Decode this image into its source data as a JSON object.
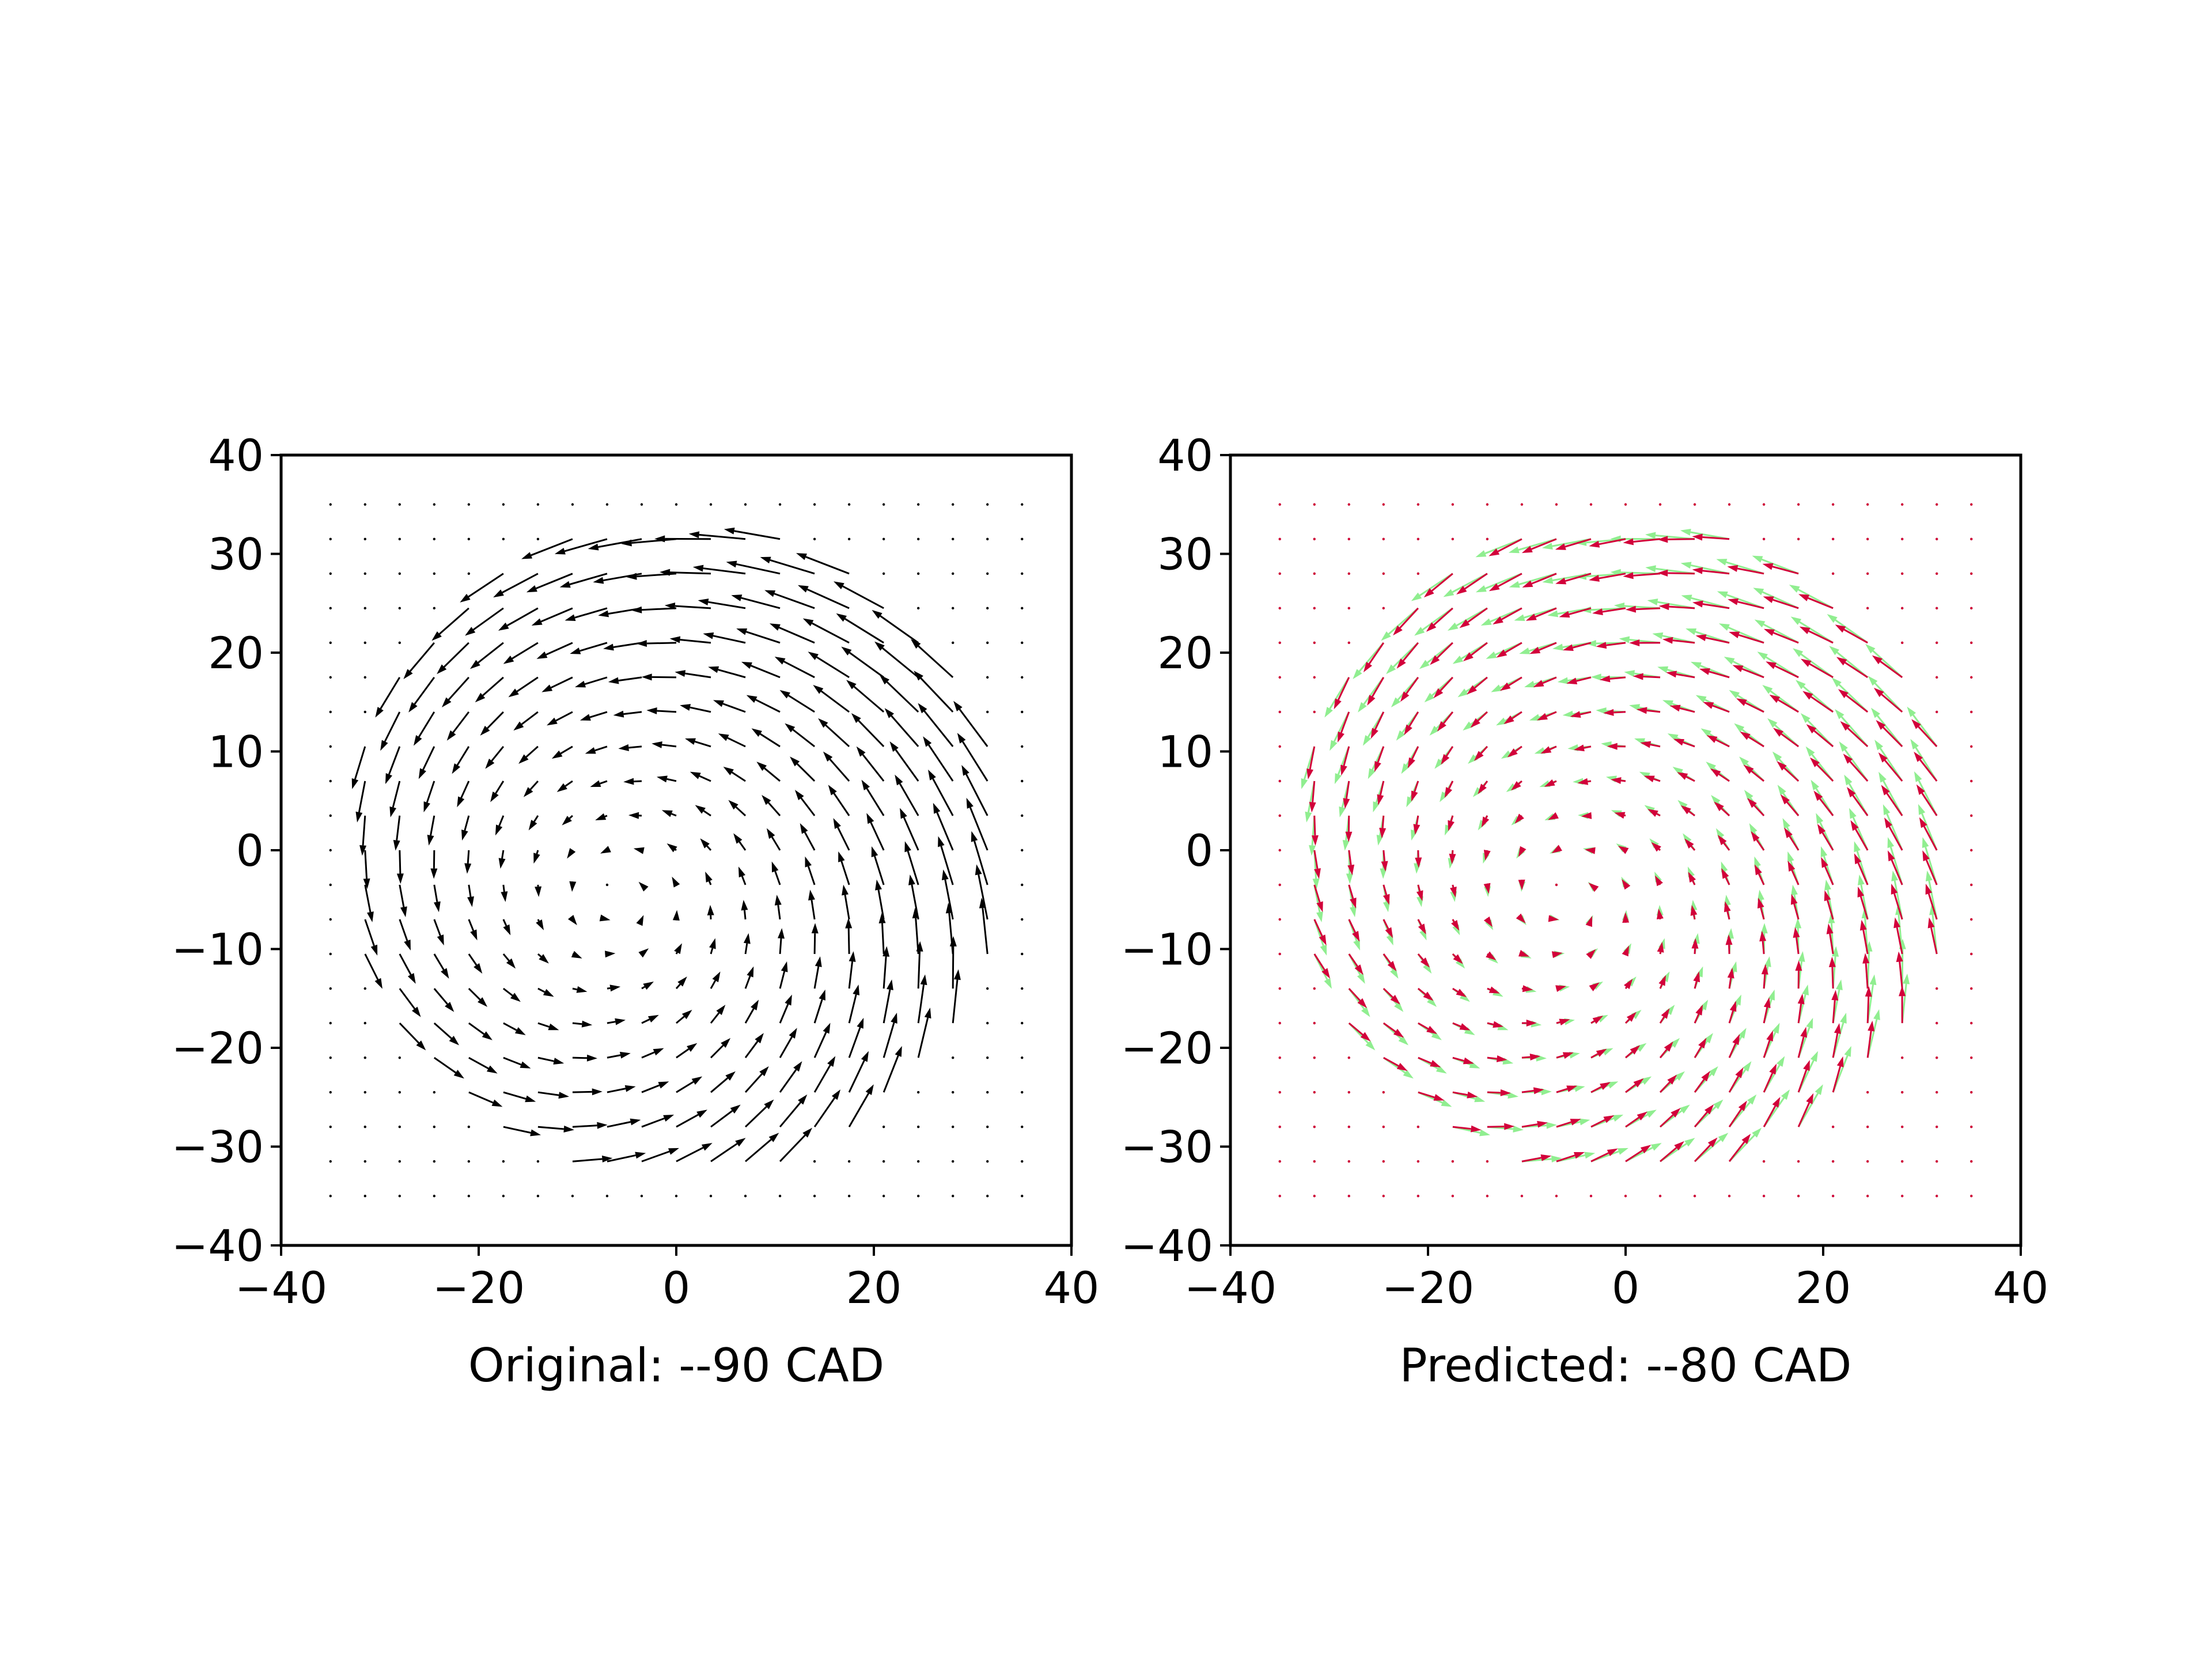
{
  "chart_data": [
    {
      "type": "quiver",
      "xlabel": "Original: --90 CAD",
      "xlim": [
        -40,
        40
      ],
      "ylim": [
        -40,
        40
      ],
      "xticks": [
        -40,
        -20,
        0,
        20,
        40
      ],
      "yticks": [
        -40,
        -30,
        -20,
        -10,
        0,
        10,
        20,
        30,
        40
      ],
      "grid": false,
      "field": {
        "grid_x": [
          -35,
          35,
          3.5
        ],
        "grid_y": [
          -35,
          35,
          3.5
        ],
        "region_radius": 34,
        "center": [
          -6,
          -5
        ],
        "note_free": true,
        "rotation": "counterclockwise",
        "max_magnitude": 16
      },
      "series": [
        {
          "color": "#000000",
          "magnitude_scale": 1.0,
          "angle_offset_deg": 0
        }
      ]
    },
    {
      "type": "quiver",
      "xlabel": "Predicted: --80 CAD",
      "xlim": [
        -40,
        40
      ],
      "ylim": [
        -40,
        40
      ],
      "xticks": [
        -40,
        -20,
        0,
        20,
        40
      ],
      "yticks": [
        -40,
        -30,
        -20,
        -10,
        0,
        10,
        20,
        30,
        40
      ],
      "grid": false,
      "field": {
        "grid_x": [
          -35,
          35,
          3.5
        ],
        "grid_y": [
          -35,
          35,
          3.5
        ],
        "region_radius": 34,
        "center": [
          -6,
          -5
        ],
        "rotation": "counterclockwise",
        "max_magnitude": 14
      },
      "series": [
        {
          "color": "#90ee90",
          "magnitude_scale": 1.0,
          "angle_offset_deg": 0
        },
        {
          "color": "#d2003a",
          "magnitude_scale": 0.75,
          "angle_offset_deg": 6
        }
      ]
    }
  ]
}
